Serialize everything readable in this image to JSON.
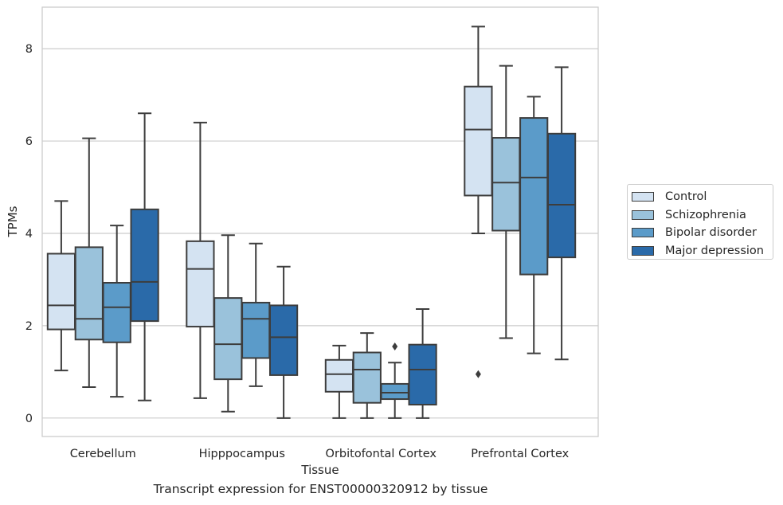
{
  "caption": "Transcript expression for ENST00000320912 by tissue",
  "chart_data": {
    "type": "box",
    "title": "",
    "xlabel": "Tissue",
    "ylabel": "TPMs",
    "ylim": [
      -0.4,
      8.9
    ],
    "yticks": [
      0,
      2,
      4,
      6,
      8
    ],
    "grid": "horizontal",
    "legend_position": "right",
    "categories": [
      "Cerebellum",
      "Hipppocampus",
      "Orbitofontal Cortex",
      "Prefrontal Cortex"
    ],
    "series": [
      {
        "name": "Control",
        "color": "#d4e3f2",
        "boxes": [
          {
            "whisker_low": 1.03,
            "q1": 1.92,
            "median": 2.44,
            "q3": 3.56,
            "whisker_high": 4.7,
            "outliers": []
          },
          {
            "whisker_low": 0.43,
            "q1": 1.98,
            "median": 3.23,
            "q3": 3.83,
            "whisker_high": 6.4,
            "outliers": []
          },
          {
            "whisker_low": 0.0,
            "q1": 0.57,
            "median": 0.95,
            "q3": 1.26,
            "whisker_high": 1.57,
            "outliers": []
          },
          {
            "whisker_low": 4.0,
            "q1": 4.82,
            "median": 6.25,
            "q3": 7.18,
            "whisker_high": 8.48,
            "outliers": [
              0.95
            ]
          }
        ]
      },
      {
        "name": "Schizophrenia",
        "color": "#9ac2db",
        "boxes": [
          {
            "whisker_low": 0.67,
            "q1": 1.7,
            "median": 2.15,
            "q3": 3.7,
            "whisker_high": 6.06,
            "outliers": []
          },
          {
            "whisker_low": 0.14,
            "q1": 0.84,
            "median": 1.6,
            "q3": 2.6,
            "whisker_high": 3.96,
            "outliers": []
          },
          {
            "whisker_low": 0.0,
            "q1": 0.33,
            "median": 1.05,
            "q3": 1.42,
            "whisker_high": 1.84,
            "outliers": []
          },
          {
            "whisker_low": 1.73,
            "q1": 4.06,
            "median": 5.1,
            "q3": 6.07,
            "whisker_high": 7.63,
            "outliers": []
          }
        ]
      },
      {
        "name": "Bipolar disorder",
        "color": "#5b9bc9",
        "boxes": [
          {
            "whisker_low": 0.46,
            "q1": 1.64,
            "median": 2.4,
            "q3": 2.93,
            "whisker_high": 4.17,
            "outliers": []
          },
          {
            "whisker_low": 0.69,
            "q1": 1.3,
            "median": 2.15,
            "q3": 2.5,
            "whisker_high": 3.78,
            "outliers": []
          },
          {
            "whisker_low": 0.0,
            "q1": 0.41,
            "median": 0.55,
            "q3": 0.74,
            "whisker_high": 1.2,
            "outliers": [
              1.55
            ]
          },
          {
            "whisker_low": 1.4,
            "q1": 3.11,
            "median": 5.21,
            "q3": 6.5,
            "whisker_high": 6.96,
            "outliers": []
          }
        ]
      },
      {
        "name": "Major depression",
        "color": "#2a6aa9",
        "boxes": [
          {
            "whisker_low": 0.38,
            "q1": 2.1,
            "median": 2.95,
            "q3": 4.52,
            "whisker_high": 6.6,
            "outliers": []
          },
          {
            "whisker_low": 0.0,
            "q1": 0.93,
            "median": 1.75,
            "q3": 2.44,
            "whisker_high": 3.28,
            "outliers": []
          },
          {
            "whisker_low": 0.0,
            "q1": 0.29,
            "median": 1.05,
            "q3": 1.59,
            "whisker_high": 2.36,
            "outliers": []
          },
          {
            "whisker_low": 1.27,
            "q1": 3.48,
            "median": 4.62,
            "q3": 6.16,
            "whisker_high": 7.6,
            "outliers": []
          }
        ]
      }
    ]
  }
}
